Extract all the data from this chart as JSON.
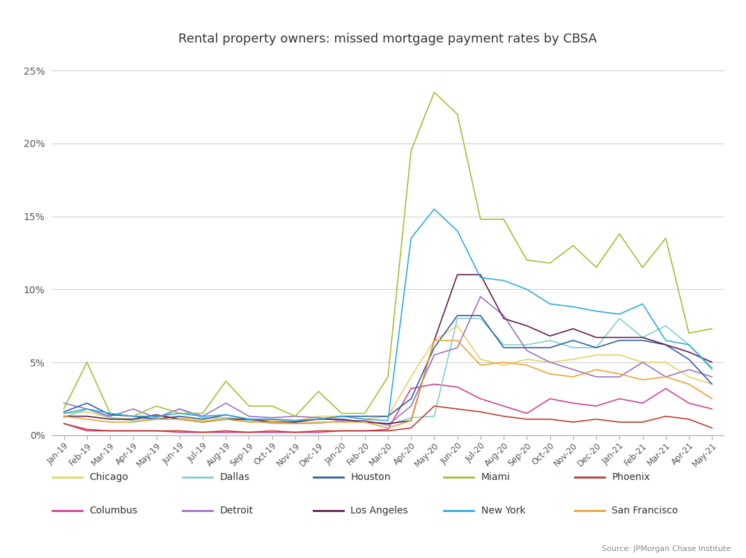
{
  "title": "Rental property owners: missed mortgage payment rates by CBSA",
  "source": "Source: JPMorgan Chase Institute",
  "ylim": [
    0,
    0.26
  ],
  "yticks": [
    0,
    0.05,
    0.1,
    0.15,
    0.2,
    0.25
  ],
  "ytick_labels": [
    "0%",
    "5%",
    "10%",
    "15%",
    "20%",
    "25%"
  ],
  "dates": [
    "Jan-19",
    "Feb-19",
    "Mar-19",
    "Apr-19",
    "May-19",
    "Jun-19",
    "Jul-19",
    "Aug-19",
    "Sep-19",
    "Oct-19",
    "Nov-19",
    "Dec-19",
    "Jan-20",
    "Feb-20",
    "Mar-20",
    "Apr-20",
    "May-20",
    "Jun-20",
    "Jul-20",
    "Aug-20",
    "Sep-20",
    "Oct-20",
    "Nov-20",
    "Dec-20",
    "Jan-21",
    "Feb-21",
    "Mar-21",
    "Apr-21",
    "May-21"
  ],
  "series": {
    "Chicago": {
      "color": "#e8d060",
      "data": [
        0.015,
        0.016,
        0.012,
        0.011,
        0.013,
        0.012,
        0.01,
        0.012,
        0.011,
        0.01,
        0.01,
        0.013,
        0.013,
        0.011,
        0.013,
        0.04,
        0.065,
        0.075,
        0.052,
        0.048,
        0.052,
        0.05,
        0.052,
        0.055,
        0.055,
        0.05,
        0.05,
        0.04,
        0.035
      ]
    },
    "Columbus": {
      "color": "#d63b8f",
      "data": [
        0.008,
        0.003,
        0.003,
        0.003,
        0.003,
        0.002,
        0.002,
        0.002,
        0.002,
        0.002,
        0.002,
        0.002,
        0.003,
        0.003,
        0.004,
        0.032,
        0.035,
        0.033,
        0.025,
        0.02,
        0.015,
        0.025,
        0.022,
        0.02,
        0.025,
        0.022,
        0.032,
        0.022,
        0.018
      ]
    },
    "Dallas": {
      "color": "#7ecece",
      "data": [
        0.012,
        0.018,
        0.012,
        0.01,
        0.012,
        0.018,
        0.012,
        0.012,
        0.01,
        0.008,
        0.008,
        0.008,
        0.01,
        0.01,
        0.007,
        0.012,
        0.013,
        0.08,
        0.08,
        0.062,
        0.062,
        0.065,
        0.06,
        0.06,
        0.08,
        0.067,
        0.075,
        0.062,
        0.045
      ]
    },
    "Detroit": {
      "color": "#9b6fc4",
      "data": [
        0.022,
        0.018,
        0.013,
        0.018,
        0.012,
        0.018,
        0.013,
        0.022,
        0.013,
        0.012,
        0.013,
        0.012,
        0.01,
        0.01,
        0.007,
        0.02,
        0.055,
        0.06,
        0.095,
        0.082,
        0.058,
        0.05,
        0.045,
        0.04,
        0.04,
        0.05,
        0.04,
        0.045,
        0.04
      ]
    },
    "Houston": {
      "color": "#2b5ba8",
      "data": [
        0.016,
        0.022,
        0.014,
        0.013,
        0.011,
        0.013,
        0.011,
        0.014,
        0.011,
        0.011,
        0.01,
        0.011,
        0.013,
        0.013,
        0.013,
        0.025,
        0.06,
        0.082,
        0.082,
        0.06,
        0.06,
        0.06,
        0.065,
        0.06,
        0.065,
        0.065,
        0.062,
        0.052,
        0.035
      ]
    },
    "Los Angeles": {
      "color": "#5c1a4a",
      "data": [
        0.013,
        0.013,
        0.011,
        0.011,
        0.014,
        0.011,
        0.009,
        0.011,
        0.011,
        0.009,
        0.009,
        0.011,
        0.011,
        0.009,
        0.008,
        0.01,
        0.065,
        0.11,
        0.11,
        0.08,
        0.075,
        0.068,
        0.073,
        0.067,
        0.067,
        0.067,
        0.062,
        0.057,
        0.05
      ]
    },
    "Miami": {
      "color": "#9ec230",
      "data": [
        0.018,
        0.05,
        0.015,
        0.013,
        0.02,
        0.015,
        0.015,
        0.037,
        0.02,
        0.02,
        0.013,
        0.03,
        0.015,
        0.015,
        0.04,
        0.195,
        0.235,
        0.22,
        0.148,
        0.148,
        0.12,
        0.118,
        0.13,
        0.115,
        0.138,
        0.115,
        0.135,
        0.07,
        0.073
      ]
    },
    "New York": {
      "color": "#2baae2",
      "data": [
        0.015,
        0.018,
        0.015,
        0.013,
        0.013,
        0.015,
        0.013,
        0.014,
        0.011,
        0.011,
        0.01,
        0.011,
        0.013,
        0.011,
        0.01,
        0.135,
        0.155,
        0.14,
        0.108,
        0.106,
        0.1,
        0.09,
        0.088,
        0.085,
        0.083,
        0.09,
        0.065,
        0.062,
        0.046
      ]
    },
    "Phoenix": {
      "color": "#c0392b",
      "data": [
        0.008,
        0.004,
        0.003,
        0.003,
        0.003,
        0.003,
        0.002,
        0.003,
        0.002,
        0.003,
        0.002,
        0.003,
        0.003,
        0.003,
        0.003,
        0.005,
        0.02,
        0.018,
        0.016,
        0.013,
        0.011,
        0.011,
        0.009,
        0.011,
        0.009,
        0.009,
        0.013,
        0.011,
        0.005
      ]
    },
    "San Francisco": {
      "color": "#f0a030",
      "data": [
        0.013,
        0.011,
        0.009,
        0.009,
        0.011,
        0.011,
        0.009,
        0.011,
        0.009,
        0.009,
        0.008,
        0.009,
        0.009,
        0.009,
        0.005,
        0.01,
        0.065,
        0.065,
        0.048,
        0.05,
        0.048,
        0.042,
        0.04,
        0.045,
        0.042,
        0.038,
        0.04,
        0.035,
        0.025
      ]
    }
  },
  "legend_row1": [
    "Chicago",
    "Dallas",
    "Houston",
    "Miami",
    "Phoenix"
  ],
  "legend_row2": [
    "Columbus",
    "Detroit",
    "Los Angeles",
    "New York",
    "San Francisco"
  ],
  "background_color": "#ffffff",
  "grid_color": "#d0d0d0"
}
